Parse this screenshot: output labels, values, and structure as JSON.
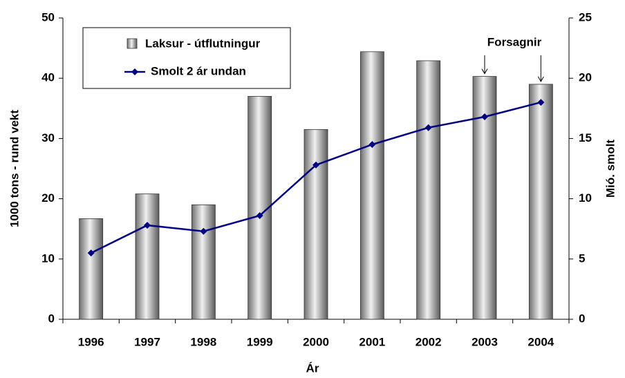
{
  "chart_data": {
    "type": "bar_line",
    "categories": [
      "1996",
      "1997",
      "1998",
      "1999",
      "2000",
      "2001",
      "2002",
      "2003",
      "2004"
    ],
    "series": [
      {
        "name": "Laksur - útflutningur",
        "color": "#a0a0a0",
        "type": "bar",
        "values": [
          16.7,
          20.8,
          19.0,
          37.0,
          31.5,
          44.4,
          42.9,
          40.3,
          39.0
        ]
      },
      {
        "name": "Smolt 2 ár undan",
        "color": "#000080",
        "type": "line",
        "axis": "y2",
        "values": [
          5.5,
          7.8,
          7.3,
          8.6,
          12.8,
          14.5,
          15.9,
          16.8,
          18.0
        ]
      }
    ],
    "xlabel": "Ár",
    "ylabel": "1000 tons - rund vekt",
    "y2label": "Mió. smolt",
    "annotation": "Forsagnir",
    "ylim": [
      0,
      50
    ],
    "yticks": [
      0,
      10,
      20,
      30,
      40,
      50
    ],
    "y2lim": [
      0,
      25
    ],
    "y2ticks": [
      0,
      5,
      10,
      15,
      20,
      25
    ],
    "legend": "upper left"
  }
}
